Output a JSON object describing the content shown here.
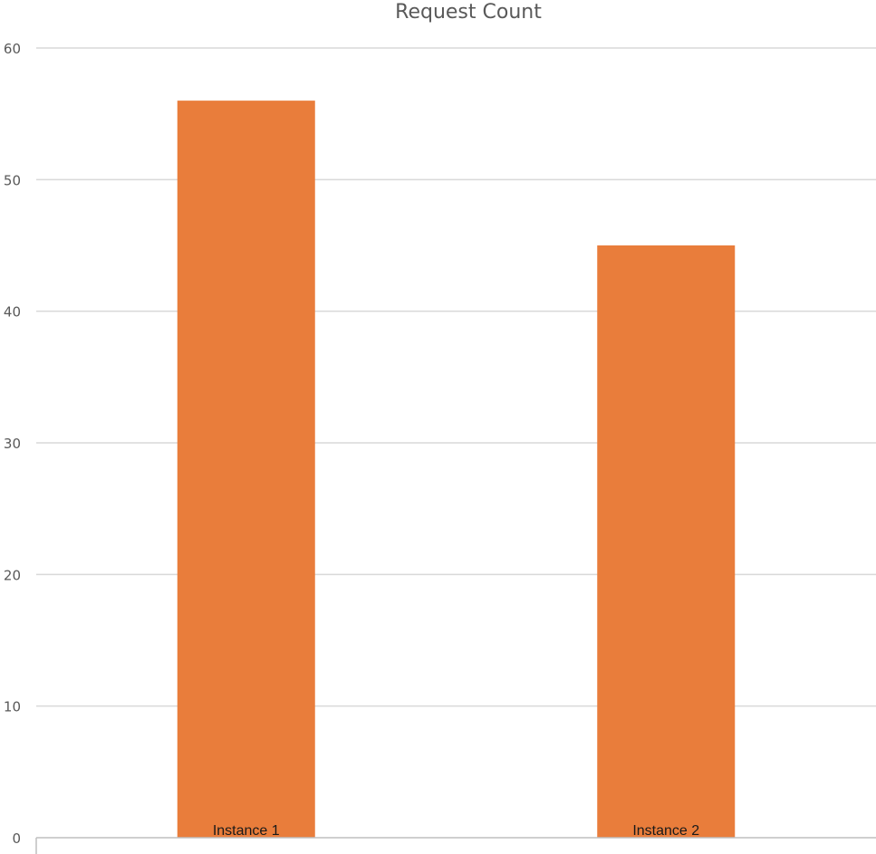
{
  "chart_data": {
    "type": "bar",
    "title": "Request Count",
    "xlabel": "",
    "ylabel": "",
    "categories": [
      "Instance 1",
      "Instance 2"
    ],
    "values": [
      56,
      45
    ],
    "ylim": [
      0,
      60
    ],
    "yticks": [
      0,
      10,
      20,
      30,
      40,
      50,
      60
    ],
    "grid": true,
    "legend": "none",
    "bar_color": "#E97D3B"
  }
}
